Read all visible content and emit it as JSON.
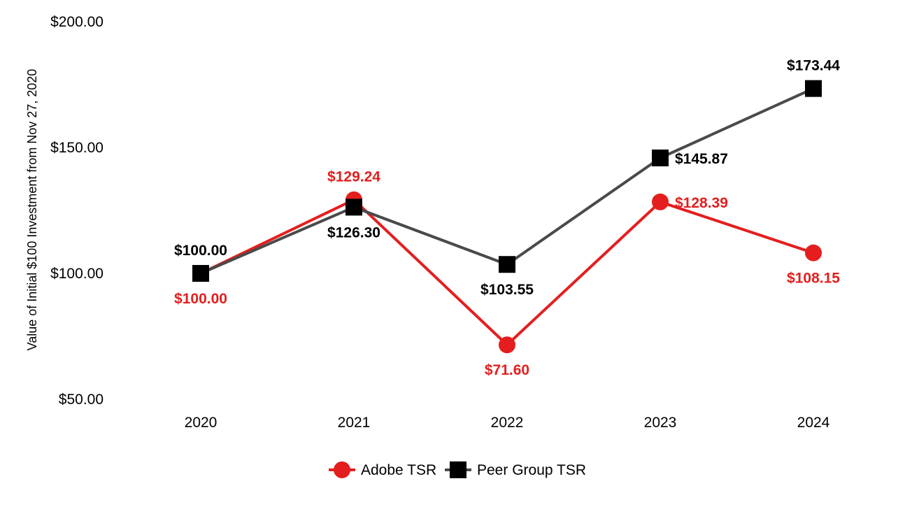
{
  "chart_data": {
    "type": "line",
    "title": "",
    "xlabel": "",
    "ylabel": "Value of Initial $100 Investment from Nov 27, 2020",
    "categories": [
      "2020",
      "2021",
      "2022",
      "2023",
      "2024"
    ],
    "ylim": [
      50,
      200
    ],
    "yticks": [
      50,
      100,
      150,
      200
    ],
    "ytick_labels": [
      "$50.00",
      "$100.00",
      "$150.00",
      "$200.00"
    ],
    "grid": false,
    "legend_position": "bottom-center",
    "series": [
      {
        "name": "Adobe TSR",
        "color": "#e41e1e",
        "line_color": "#e41e1e",
        "marker": "circle",
        "values": [
          100.0,
          129.24,
          71.6,
          128.39,
          108.15
        ],
        "labels": [
          "$100.00",
          "$129.24",
          "$71.60",
          "$128.39",
          "$108.15"
        ],
        "label_positions": [
          "below",
          "above",
          "below",
          "right",
          "below"
        ]
      },
      {
        "name": "Peer Group TSR",
        "color": "#000000",
        "line_color": "#4a4a4a",
        "marker": "square",
        "values": [
          100.0,
          126.3,
          103.55,
          145.87,
          173.44
        ],
        "labels": [
          "$100.00",
          "$126.30",
          "$103.55",
          "$145.87",
          "$173.44"
        ],
        "label_positions": [
          "above",
          "below",
          "below",
          "right",
          "above"
        ]
      }
    ]
  }
}
